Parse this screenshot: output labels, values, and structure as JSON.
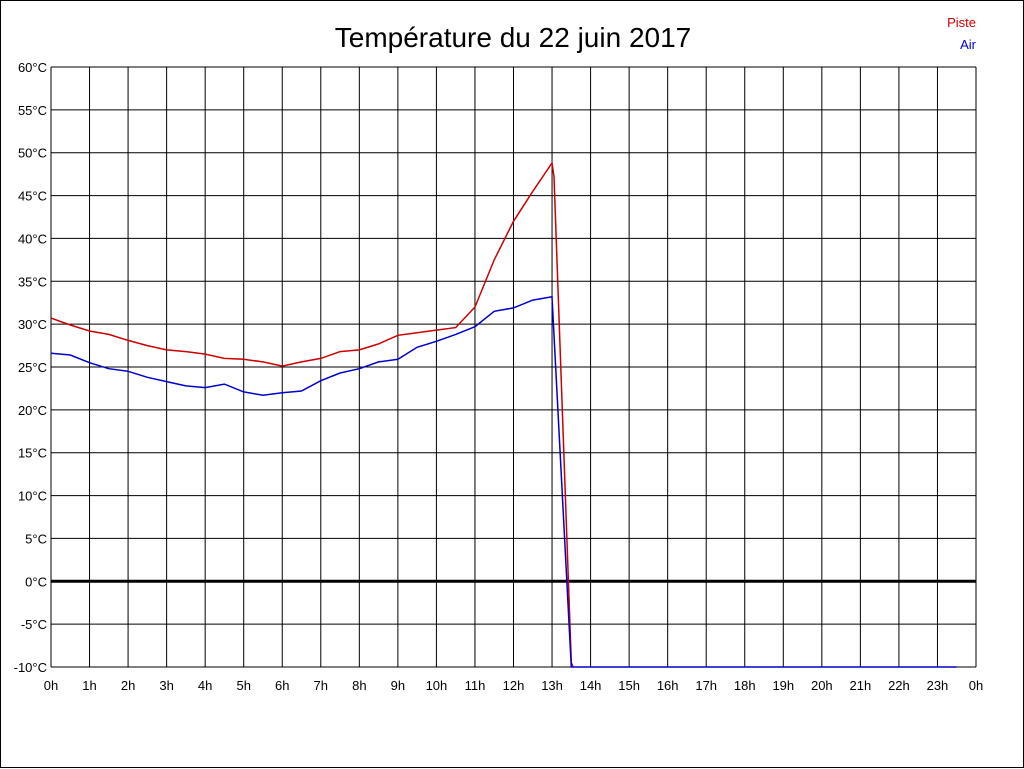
{
  "chart_data": {
    "type": "line",
    "title": "Température du 22 juin 2017",
    "xlabel": "",
    "ylabel": "",
    "x_unit": "hours",
    "xlim": [
      0,
      24
    ],
    "ylim": [
      -10,
      60
    ],
    "x_ticks": [
      {
        "value": 0,
        "label": "0h"
      },
      {
        "value": 1,
        "label": "1h"
      },
      {
        "value": 2,
        "label": "2h"
      },
      {
        "value": 3,
        "label": "3h"
      },
      {
        "value": 4,
        "label": "4h"
      },
      {
        "value": 5,
        "label": "5h"
      },
      {
        "value": 6,
        "label": "6h"
      },
      {
        "value": 7,
        "label": "7h"
      },
      {
        "value": 8,
        "label": "8h"
      },
      {
        "value": 9,
        "label": "9h"
      },
      {
        "value": 10,
        "label": "10h"
      },
      {
        "value": 11,
        "label": "11h"
      },
      {
        "value": 12,
        "label": "12h"
      },
      {
        "value": 13,
        "label": "13h"
      },
      {
        "value": 14,
        "label": "14h"
      },
      {
        "value": 15,
        "label": "15h"
      },
      {
        "value": 16,
        "label": "16h"
      },
      {
        "value": 17,
        "label": "17h"
      },
      {
        "value": 18,
        "label": "18h"
      },
      {
        "value": 19,
        "label": "19h"
      },
      {
        "value": 20,
        "label": "20h"
      },
      {
        "value": 21,
        "label": "21h"
      },
      {
        "value": 22,
        "label": "22h"
      },
      {
        "value": 23,
        "label": "23h"
      },
      {
        "value": 24,
        "label": "0h"
      }
    ],
    "y_ticks": [
      {
        "value": 60,
        "label": "60°C"
      },
      {
        "value": 55,
        "label": "55°C"
      },
      {
        "value": 50,
        "label": "50°C"
      },
      {
        "value": 45,
        "label": "45°C"
      },
      {
        "value": 40,
        "label": "40°C"
      },
      {
        "value": 35,
        "label": "35°C"
      },
      {
        "value": 30,
        "label": "30°C"
      },
      {
        "value": 25,
        "label": "25°C"
      },
      {
        "value": 20,
        "label": "20°C"
      },
      {
        "value": 15,
        "label": "15°C"
      },
      {
        "value": 10,
        "label": "10°C"
      },
      {
        "value": 5,
        "label": "5°C"
      },
      {
        "value": 0,
        "label": "0°C"
      },
      {
        "value": -5,
        "label": "-5°C"
      },
      {
        "value": -10,
        "label": "-10°C"
      }
    ],
    "grid": true,
    "zero_line": true,
    "legend_position": "top-right",
    "series": [
      {
        "name": "Piste",
        "color": "#cc0000",
        "points": [
          [
            0,
            30.7
          ],
          [
            0.5,
            29.9
          ],
          [
            1,
            29.2
          ],
          [
            1.5,
            28.8
          ],
          [
            2,
            28.1
          ],
          [
            2.5,
            27.5
          ],
          [
            3,
            27.0
          ],
          [
            3.5,
            26.8
          ],
          [
            4,
            26.5
          ],
          [
            4.5,
            26.0
          ],
          [
            5,
            25.9
          ],
          [
            5.5,
            25.6
          ],
          [
            6,
            25.1
          ],
          [
            6.5,
            25.6
          ],
          [
            7,
            26.0
          ],
          [
            7.5,
            26.8
          ],
          [
            8,
            27.0
          ],
          [
            8.5,
            27.7
          ],
          [
            9,
            28.7
          ],
          [
            9.5,
            29.0
          ],
          [
            10,
            29.3
          ],
          [
            10.5,
            29.6
          ],
          [
            11,
            32.0
          ],
          [
            11.5,
            37.5
          ],
          [
            12,
            42.0
          ],
          [
            12.5,
            45.5
          ],
          [
            13,
            48.8
          ],
          [
            13.05,
            47.2
          ],
          [
            13.5,
            -9.5
          ],
          [
            13.55,
            -10
          ]
        ]
      },
      {
        "name": "Air",
        "color": "#0000cc",
        "points": [
          [
            0,
            26.6
          ],
          [
            0.5,
            26.4
          ],
          [
            1,
            25.5
          ],
          [
            1.5,
            24.8
          ],
          [
            2,
            24.5
          ],
          [
            2.5,
            23.8
          ],
          [
            3,
            23.3
          ],
          [
            3.5,
            22.8
          ],
          [
            4,
            22.6
          ],
          [
            4.5,
            23.0
          ],
          [
            5,
            22.1
          ],
          [
            5.5,
            21.7
          ],
          [
            6,
            22.0
          ],
          [
            6.5,
            22.2
          ],
          [
            7,
            23.4
          ],
          [
            7.5,
            24.3
          ],
          [
            8,
            24.8
          ],
          [
            8.5,
            25.6
          ],
          [
            9,
            25.9
          ],
          [
            9.5,
            27.3
          ],
          [
            10,
            28.0
          ],
          [
            10.5,
            28.8
          ],
          [
            11,
            29.7
          ],
          [
            11.5,
            31.5
          ],
          [
            12,
            31.9
          ],
          [
            12.5,
            32.8
          ],
          [
            13,
            33.2
          ],
          [
            13.5,
            -10
          ],
          [
            14,
            -10
          ],
          [
            23.5,
            -10
          ]
        ]
      }
    ]
  }
}
